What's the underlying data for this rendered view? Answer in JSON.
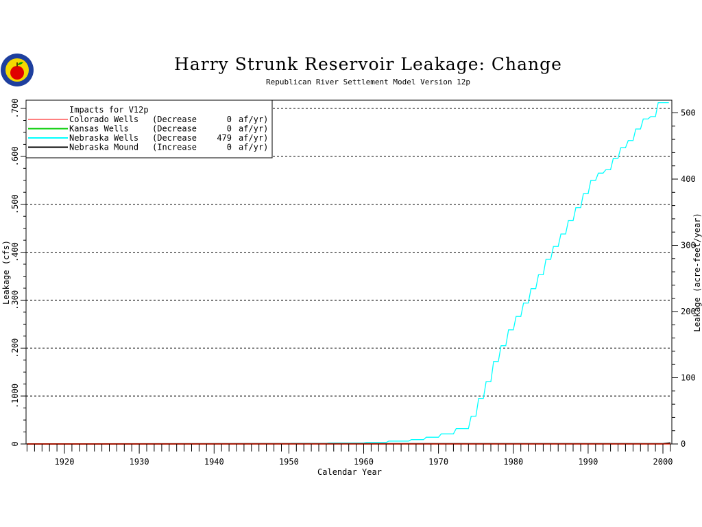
{
  "chart_data": {
    "type": "line",
    "title": "Harry Strunk Reservoir Leakage: Change",
    "subtitle": "Republican River Settlement Model Version 12p",
    "xlabel": "Calendar Year",
    "ylabel_left": "Leakage (cfs)",
    "ylabel_right": "Leakage (acre-feet/year)",
    "xlim": [
      1915,
      2001
    ],
    "ylim_left": [
      0,
      0.71
    ],
    "ylim_right": [
      0,
      514
    ],
    "x_ticks": [
      "1920",
      "1930",
      "1940",
      "1950",
      "1960",
      "1970",
      "1980",
      "1990",
      "2000"
    ],
    "y_ticks_left": [
      ".700",
      ".600",
      ".500",
      ".400",
      ".300",
      ".200",
      ".1000",
      "0"
    ],
    "y_ticks_right": [
      "500",
      "400",
      "300",
      "200",
      "100",
      "0"
    ],
    "grid_y": [
      0.1,
      0.2,
      0.3,
      0.4,
      0.5,
      0.6,
      0.7
    ],
    "grid": true,
    "legend_title": "Impacts for V12p",
    "legend_position": "top-left",
    "legend": [
      {
        "label": "Colorado Wells",
        "dir": "(Decrease",
        "amount": "0",
        "unit": "af/yr)",
        "color": "#ff0000"
      },
      {
        "label": "Kansas Wells",
        "dir": "(Decrease",
        "amount": "0",
        "unit": "af/yr)",
        "color": "#00cc00"
      },
      {
        "label": "Nebraska Wells",
        "dir": "(Decrease",
        "amount": "479",
        "unit": "af/yr)",
        "color": "#00ffff"
      },
      {
        "label": "Nebraska Mound",
        "dir": "(Increase",
        "amount": "0",
        "unit": "af/yr)",
        "color": "#000000"
      }
    ],
    "series": [
      {
        "name": "Nebraska Wells",
        "color": "#00ffff",
        "step": true,
        "x": [
          1915,
          1950,
          1955,
          1960,
          1963,
          1966,
          1968,
          1970,
          1972,
          1974,
          1975,
          1976,
          1977,
          1978,
          1979,
          1980,
          1981,
          1982,
          1983,
          1984,
          1985,
          1986,
          1987,
          1988,
          1989,
          1990,
          1991,
          1992,
          1993,
          1994,
          1995,
          1996,
          1997,
          1998,
          1999,
          2000,
          2000.8
        ],
        "y": [
          0,
          0,
          0.001,
          0.002,
          0.003,
          0.006,
          0.009,
          0.014,
          0.021,
          0.032,
          0.058,
          0.095,
          0.13,
          0.172,
          0.205,
          0.238,
          0.266,
          0.294,
          0.324,
          0.353,
          0.385,
          0.412,
          0.438,
          0.466,
          0.493,
          0.522,
          0.55,
          0.565,
          0.572,
          0.596,
          0.618,
          0.633,
          0.657,
          0.678,
          0.683,
          0.712,
          0.712
        ]
      },
      {
        "name": "Nebraska Mound",
        "color": "#000000",
        "step": false,
        "x": [
          1915,
          1954,
          1985,
          2000,
          2001
        ],
        "y": [
          0,
          0.0005,
          0.0005,
          0.0005,
          0.002
        ]
      },
      {
        "name": "Kansas Wells",
        "color": "#00cc00",
        "step": false,
        "x": [
          1915,
          2001
        ],
        "y": [
          0,
          0
        ]
      },
      {
        "name": "Colorado Wells",
        "color": "#ff0000",
        "step": false,
        "x": [
          1915,
          2001
        ],
        "y": [
          0,
          0
        ]
      }
    ]
  },
  "logo": {
    "name": "seal-logo"
  }
}
